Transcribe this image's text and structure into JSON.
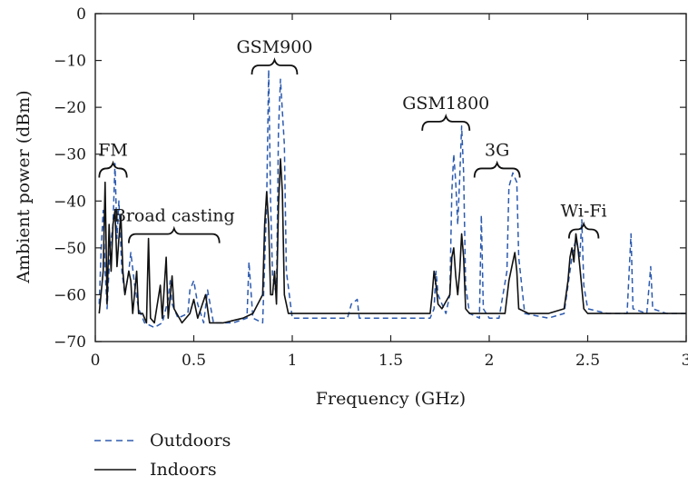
{
  "chart_data": {
    "type": "line",
    "xlabel": "Frequency (GHz)",
    "ylabel": "Ambient power (dBm)",
    "xlim": [
      0,
      3
    ],
    "ylim": [
      -70,
      0
    ],
    "x_ticks": [
      0,
      0.5,
      1,
      1.5,
      2,
      2.5,
      3
    ],
    "x_tick_labels": [
      "0",
      "0.5",
      "1",
      "1.5",
      "2",
      "2.5",
      "3"
    ],
    "y_ticks": [
      0,
      -10,
      -20,
      -30,
      -40,
      -50,
      -60,
      -70
    ],
    "y_tick_labels": [
      "0",
      "−10",
      "−20",
      "−30",
      "−40",
      "−50",
      "−60",
      "−70"
    ],
    "grid": false,
    "legend_position": "bottom-left, below plot",
    "annotations": [
      {
        "text": "FM",
        "x": 0.09,
        "y": -31.5
      },
      {
        "text": "Broad casting",
        "x": 0.4,
        "y": -45.5
      },
      {
        "text": "GSM900",
        "x": 0.91,
        "y": -9.5
      },
      {
        "text": "GSM1800",
        "x": 1.78,
        "y": -21.5
      },
      {
        "text": "3G",
        "x": 2.04,
        "y": -31.5
      },
      {
        "text": "Wi-Fi",
        "x": 2.48,
        "y": -44.5
      }
    ],
    "series": [
      {
        "name": "Outdoors",
        "style": "dashed",
        "color": "#2d5bb0",
        "points": [
          [
            0.02,
            -62
          ],
          [
            0.03,
            -50
          ],
          [
            0.04,
            -42
          ],
          [
            0.05,
            -55
          ],
          [
            0.06,
            -63
          ],
          [
            0.075,
            -50
          ],
          [
            0.09,
            -45
          ],
          [
            0.1,
            -32
          ],
          [
            0.11,
            -48
          ],
          [
            0.12,
            -40
          ],
          [
            0.135,
            -55
          ],
          [
            0.15,
            -60
          ],
          [
            0.17,
            -55
          ],
          [
            0.18,
            -51
          ],
          [
            0.2,
            -58
          ],
          [
            0.22,
            -63
          ],
          [
            0.25,
            -66
          ],
          [
            0.3,
            -67
          ],
          [
            0.34,
            -66
          ],
          [
            0.37,
            -61
          ],
          [
            0.38,
            -57
          ],
          [
            0.39,
            -62
          ],
          [
            0.42,
            -65
          ],
          [
            0.47,
            -64
          ],
          [
            0.48,
            -59
          ],
          [
            0.5,
            -57
          ],
          [
            0.52,
            -62
          ],
          [
            0.55,
            -66
          ],
          [
            0.57,
            -59
          ],
          [
            0.6,
            -66
          ],
          [
            0.7,
            -66
          ],
          [
            0.77,
            -65
          ],
          [
            0.78,
            -53
          ],
          [
            0.8,
            -65
          ],
          [
            0.85,
            -66
          ],
          [
            0.87,
            -40
          ],
          [
            0.88,
            -12
          ],
          [
            0.89,
            -40
          ],
          [
            0.9,
            -56
          ],
          [
            0.92,
            -60
          ],
          [
            0.93,
            -25
          ],
          [
            0.94,
            -14
          ],
          [
            0.96,
            -28
          ],
          [
            0.97,
            -55
          ],
          [
            1.0,
            -65
          ],
          [
            1.1,
            -65
          ],
          [
            1.2,
            -65
          ],
          [
            1.28,
            -65
          ],
          [
            1.3,
            -62
          ],
          [
            1.33,
            -61
          ],
          [
            1.34,
            -65
          ],
          [
            1.5,
            -65
          ],
          [
            1.6,
            -65
          ],
          [
            1.7,
            -65
          ],
          [
            1.72,
            -63
          ],
          [
            1.73,
            -55
          ],
          [
            1.74,
            -60
          ],
          [
            1.78,
            -64
          ],
          [
            1.8,
            -60
          ],
          [
            1.81,
            -38
          ],
          [
            1.82,
            -30
          ],
          [
            1.83,
            -36
          ],
          [
            1.84,
            -45
          ],
          [
            1.85,
            -35
          ],
          [
            1.86,
            -24
          ],
          [
            1.87,
            -34
          ],
          [
            1.88,
            -58
          ],
          [
            1.9,
            -64
          ],
          [
            1.95,
            -65
          ],
          [
            1.96,
            -43
          ],
          [
            1.97,
            -63
          ],
          [
            2.0,
            -65
          ],
          [
            2.05,
            -65
          ],
          [
            2.09,
            -55
          ],
          [
            2.1,
            -37
          ],
          [
            2.12,
            -34
          ],
          [
            2.14,
            -36
          ],
          [
            2.15,
            -52
          ],
          [
            2.18,
            -64
          ],
          [
            2.3,
            -65
          ],
          [
            2.38,
            -64
          ],
          [
            2.4,
            -58
          ],
          [
            2.42,
            -52
          ],
          [
            2.44,
            -48
          ],
          [
            2.46,
            -52
          ],
          [
            2.47,
            -44
          ],
          [
            2.48,
            -58
          ],
          [
            2.5,
            -63
          ],
          [
            2.6,
            -64
          ],
          [
            2.7,
            -64
          ],
          [
            2.72,
            -47
          ],
          [
            2.73,
            -63
          ],
          [
            2.8,
            -64
          ],
          [
            2.82,
            -54
          ],
          [
            2.83,
            -63
          ],
          [
            2.9,
            -64
          ],
          [
            3.0,
            -64
          ]
        ]
      },
      {
        "name": "Indoors",
        "style": "solid",
        "color": "#111111",
        "points": [
          [
            0.02,
            -64
          ],
          [
            0.04,
            -55
          ],
          [
            0.05,
            -36
          ],
          [
            0.06,
            -62
          ],
          [
            0.07,
            -45
          ],
          [
            0.08,
            -55
          ],
          [
            0.09,
            -45
          ],
          [
            0.1,
            -42
          ],
          [
            0.11,
            -54
          ],
          [
            0.12,
            -48
          ],
          [
            0.13,
            -43
          ],
          [
            0.14,
            -55
          ],
          [
            0.15,
            -60
          ],
          [
            0.17,
            -55
          ],
          [
            0.18,
            -57
          ],
          [
            0.19,
            -64
          ],
          [
            0.21,
            -55
          ],
          [
            0.22,
            -64
          ],
          [
            0.24,
            -64
          ],
          [
            0.26,
            -66
          ],
          [
            0.27,
            -48
          ],
          [
            0.28,
            -65
          ],
          [
            0.3,
            -66
          ],
          [
            0.33,
            -58
          ],
          [
            0.34,
            -65
          ],
          [
            0.36,
            -52
          ],
          [
            0.37,
            -65
          ],
          [
            0.39,
            -56
          ],
          [
            0.4,
            -63
          ],
          [
            0.44,
            -66
          ],
          [
            0.48,
            -64
          ],
          [
            0.5,
            -61
          ],
          [
            0.52,
            -65
          ],
          [
            0.56,
            -60
          ],
          [
            0.58,
            -66
          ],
          [
            0.65,
            -66
          ],
          [
            0.75,
            -65
          ],
          [
            0.8,
            -64
          ],
          [
            0.85,
            -60
          ],
          [
            0.86,
            -45
          ],
          [
            0.87,
            -38
          ],
          [
            0.88,
            -45
          ],
          [
            0.89,
            -60
          ],
          [
            0.9,
            -60
          ],
          [
            0.91,
            -55
          ],
          [
            0.92,
            -62
          ],
          [
            0.93,
            -41
          ],
          [
            0.94,
            -31
          ],
          [
            0.95,
            -38
          ],
          [
            0.96,
            -60
          ],
          [
            0.98,
            -64
          ],
          [
            1.0,
            -64
          ],
          [
            1.1,
            -64
          ],
          [
            1.2,
            -64
          ],
          [
            1.3,
            -64
          ],
          [
            1.4,
            -64
          ],
          [
            1.5,
            -64
          ],
          [
            1.6,
            -64
          ],
          [
            1.7,
            -64
          ],
          [
            1.71,
            -60
          ],
          [
            1.72,
            -55
          ],
          [
            1.73,
            -58
          ],
          [
            1.74,
            -62
          ],
          [
            1.76,
            -63
          ],
          [
            1.8,
            -60
          ],
          [
            1.81,
            -52
          ],
          [
            1.82,
            -50
          ],
          [
            1.83,
            -56
          ],
          [
            1.84,
            -60
          ],
          [
            1.85,
            -55
          ],
          [
            1.86,
            -47
          ],
          [
            1.87,
            -52
          ],
          [
            1.88,
            -63
          ],
          [
            1.9,
            -64
          ],
          [
            2.0,
            -64
          ],
          [
            2.05,
            -64
          ],
          [
            2.08,
            -64
          ],
          [
            2.1,
            -57
          ],
          [
            2.12,
            -53
          ],
          [
            2.13,
            -51
          ],
          [
            2.14,
            -55
          ],
          [
            2.15,
            -63
          ],
          [
            2.2,
            -64
          ],
          [
            2.3,
            -64
          ],
          [
            2.38,
            -63
          ],
          [
            2.4,
            -57
          ],
          [
            2.41,
            -52
          ],
          [
            2.42,
            -50
          ],
          [
            2.43,
            -53
          ],
          [
            2.44,
            -47
          ],
          [
            2.45,
            -50
          ],
          [
            2.46,
            -54
          ],
          [
            2.48,
            -63
          ],
          [
            2.5,
            -64
          ],
          [
            2.6,
            -64
          ],
          [
            2.8,
            -64
          ],
          [
            3.0,
            -64
          ]
        ]
      }
    ]
  }
}
